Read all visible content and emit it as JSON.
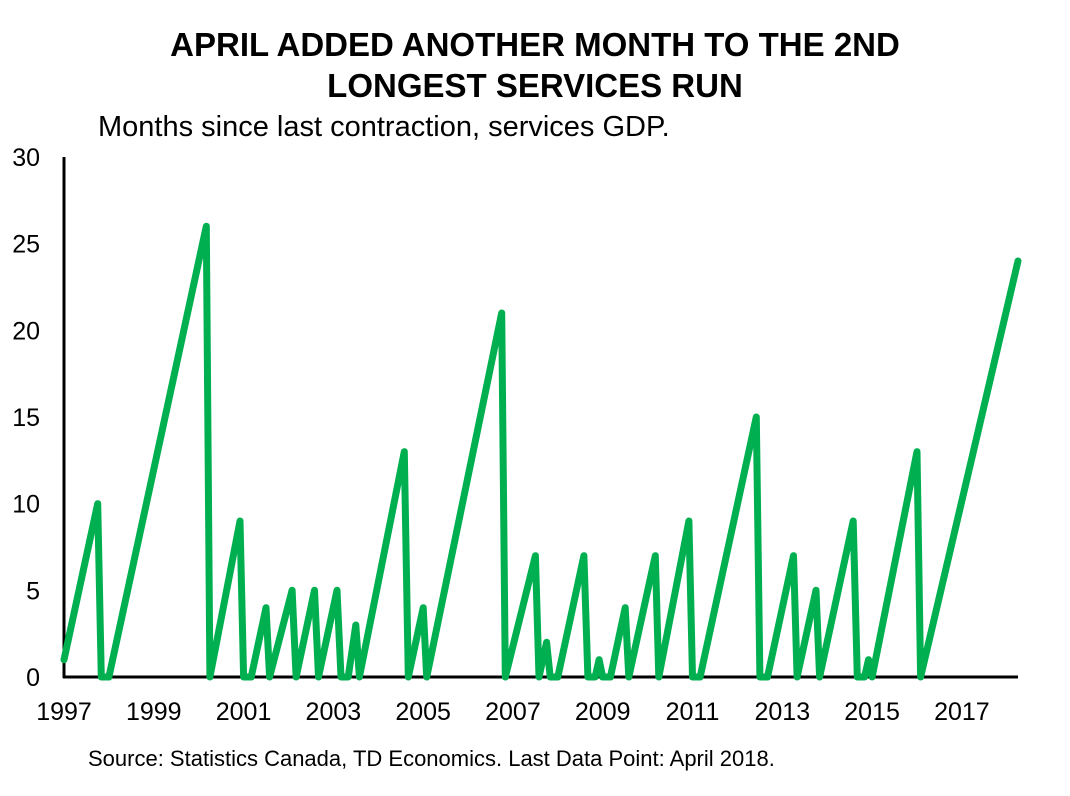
{
  "chart_data": {
    "type": "line",
    "title_lines": [
      "APRIL ADDED ANOTHER MONTH TO THE 2ND",
      "LONGEST SERVICES RUN"
    ],
    "subtitle": "Months since last contraction, services GDP.",
    "source": "Source: Statistics Canada, TD Economics. Last Data Point: April 2018.",
    "xlim": [
      1997,
      2018.25
    ],
    "ylim": [
      0,
      30
    ],
    "yticks": [
      "0",
      "5",
      "10",
      "15",
      "20",
      "25",
      "30"
    ],
    "xticks": [
      "1997",
      "1999",
      "2001",
      "2003",
      "2005",
      "2007",
      "2009",
      "2011",
      "2013",
      "2015",
      "2017"
    ],
    "line_color": "#00b050",
    "series": [
      {
        "name": "Months since last contraction, services GDP",
        "points": [
          [
            1997.0,
            1
          ],
          [
            1997.75,
            10
          ],
          [
            1997.83,
            0
          ],
          [
            1998.0,
            0
          ],
          [
            2000.17,
            26
          ],
          [
            2000.25,
            0
          ],
          [
            2000.92,
            9
          ],
          [
            2001.0,
            0
          ],
          [
            2001.17,
            0
          ],
          [
            2001.5,
            4
          ],
          [
            2001.58,
            0
          ],
          [
            2002.08,
            5
          ],
          [
            2002.17,
            0
          ],
          [
            2002.58,
            5
          ],
          [
            2002.67,
            0
          ],
          [
            2003.08,
            5
          ],
          [
            2003.17,
            0
          ],
          [
            2003.33,
            0
          ],
          [
            2003.5,
            3
          ],
          [
            2003.58,
            0
          ],
          [
            2004.58,
            13
          ],
          [
            2004.67,
            0
          ],
          [
            2005.0,
            4
          ],
          [
            2005.08,
            0
          ],
          [
            2006.75,
            21
          ],
          [
            2006.83,
            0
          ],
          [
            2007.5,
            7
          ],
          [
            2007.58,
            0
          ],
          [
            2007.75,
            2
          ],
          [
            2007.83,
            0
          ],
          [
            2008.0,
            0
          ],
          [
            2008.58,
            7
          ],
          [
            2008.67,
            0
          ],
          [
            2008.83,
            0
          ],
          [
            2008.92,
            1
          ],
          [
            2009.0,
            0
          ],
          [
            2009.17,
            0
          ],
          [
            2009.5,
            4
          ],
          [
            2009.58,
            0
          ],
          [
            2010.17,
            7
          ],
          [
            2010.25,
            0
          ],
          [
            2010.92,
            9
          ],
          [
            2011.0,
            0
          ],
          [
            2011.17,
            0
          ],
          [
            2012.42,
            15
          ],
          [
            2012.5,
            0
          ],
          [
            2012.67,
            0
          ],
          [
            2013.25,
            7
          ],
          [
            2013.33,
            0
          ],
          [
            2013.75,
            5
          ],
          [
            2013.83,
            0
          ],
          [
            2014.58,
            9
          ],
          [
            2014.67,
            0
          ],
          [
            2014.83,
            0
          ],
          [
            2014.92,
            1
          ],
          [
            2015.0,
            0
          ],
          [
            2016.0,
            13
          ],
          [
            2016.08,
            0
          ],
          [
            2018.25,
            24
          ]
        ]
      }
    ]
  }
}
